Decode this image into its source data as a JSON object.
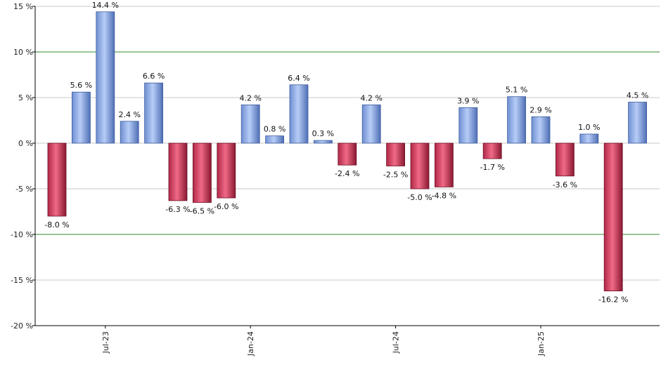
{
  "chart_data": {
    "type": "bar",
    "title": "",
    "xlabel": "",
    "ylabel": "",
    "ylim": [
      -20,
      15
    ],
    "y_ticks": [
      15,
      10,
      5,
      0,
      -5,
      -10,
      -15,
      -20
    ],
    "y_tick_labels": [
      "15 %",
      "10 %",
      "5 %",
      "0 %",
      "-5 %",
      "-10 %",
      "-15 %",
      "-20 %"
    ],
    "reference_lines": [
      10,
      -10
    ],
    "grid": true,
    "legend": "none",
    "x_tick_labels": [
      {
        "label": "Jul-23",
        "index": 2
      },
      {
        "label": "Jan-24",
        "index": 8
      },
      {
        "label": "Jul-24",
        "index": 14
      },
      {
        "label": "Jan-25",
        "index": 20
      }
    ],
    "values": [
      -8.0,
      5.6,
      14.4,
      2.4,
      6.6,
      -6.3,
      -6.5,
      -6.0,
      4.2,
      0.8,
      6.4,
      0.3,
      -2.4,
      4.2,
      -2.5,
      -5.0,
      -4.8,
      3.9,
      -1.7,
      5.1,
      2.9,
      -3.6,
      1.0,
      -16.2,
      4.5
    ],
    "labels": [
      "-8.0 %",
      "5.6 %",
      "14.4 %",
      "2.4 %",
      "6.6 %",
      "-6.3 %",
      "-6.5 %",
      "-6.0 %",
      "4.2 %",
      "0.8 %",
      "6.4 %",
      "0.3 %",
      "-2.4 %",
      "4.2 %",
      "-2.5 %",
      "-5.0 %",
      "-4.8 %",
      "3.9 %",
      "-1.7 %",
      "5.1 %",
      "2.9 %",
      "-3.6 %",
      "1.0 %",
      "-16.2 %",
      "4.5 %"
    ],
    "colors": {
      "positive_light": "#a8c4f4",
      "positive_dark": "#5b7fc8",
      "negative_light": "#e8607a",
      "negative_dark": "#8c1a34",
      "grid": "#c8c8c8",
      "reference": "#2e8b2e",
      "axis": "#000000"
    }
  }
}
